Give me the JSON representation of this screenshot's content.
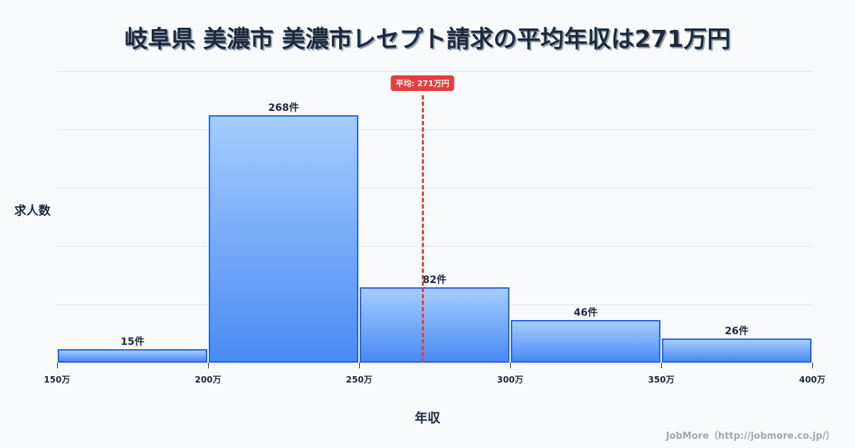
{
  "title": "岐阜県 美濃市 美濃市レセプト請求の平均年収は271万円",
  "axes": {
    "ylabel": "求人数",
    "xlabel": "年収"
  },
  "mean": {
    "value": 271,
    "label": "平均: 271万円",
    "color": "#e53e3e"
  },
  "footer": "JobMore（http://jobmore.co.jp/）",
  "colors": {
    "bar_fill_top": "#a5cdfd",
    "bar_fill_bottom": "#4a8af4",
    "bar_border": "#2563eb",
    "background": "#f8fafc",
    "text": "#1e293b"
  },
  "chart_data": {
    "type": "bar",
    "subtype": "histogram",
    "title": "岐阜県 美濃市 美濃市レセプト請求の平均年収は271万円",
    "xlabel": "年収",
    "ylabel": "求人数",
    "bins": [
      {
        "from": 150,
        "to": 200,
        "count": 15,
        "label": "15件"
      },
      {
        "from": 200,
        "to": 250,
        "count": 268,
        "label": "268件"
      },
      {
        "from": 250,
        "to": 300,
        "count": 82,
        "label": "82件"
      },
      {
        "from": 300,
        "to": 350,
        "count": 46,
        "label": "46件"
      },
      {
        "from": 350,
        "to": 400,
        "count": 26,
        "label": "26件"
      }
    ],
    "categories": [
      "150万-200万",
      "200万-250万",
      "250万-300万",
      "300万-350万",
      "350万-400万"
    ],
    "values": [
      15,
      268,
      82,
      46,
      26
    ],
    "x_ticks": [
      "150万",
      "200万",
      "250万",
      "300万",
      "350万",
      "400万"
    ],
    "xlim": [
      150,
      400
    ],
    "ylim": [
      0,
      316
    ],
    "grid": true,
    "y_tick_labels_shown": false,
    "annotations": [
      {
        "type": "vline",
        "x": 271,
        "label": "平均: 271万円",
        "style": "dashed",
        "color": "#e53e3e"
      }
    ],
    "legend": null
  }
}
